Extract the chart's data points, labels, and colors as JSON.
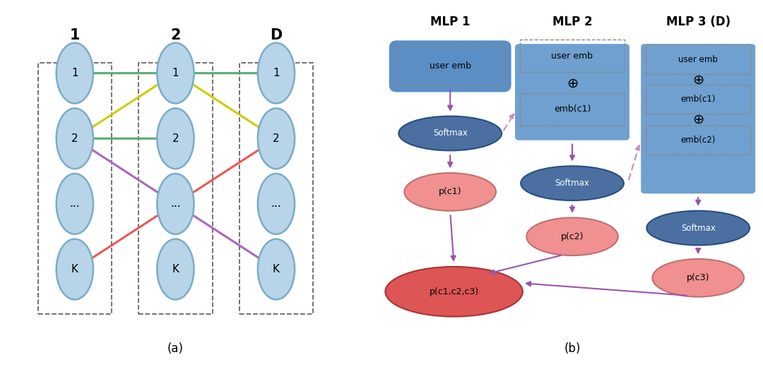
{
  "background": "#ffffff",
  "fig_width": 10.8,
  "fig_height": 5.3,
  "dpi": 100,
  "part_a": {
    "columns": [
      "1",
      "2",
      "D"
    ],
    "node_labels": [
      [
        "1",
        "2",
        "...",
        "K"
      ],
      [
        "1",
        "2",
        "...",
        "K"
      ],
      [
        "1",
        "2",
        "...",
        "K"
      ]
    ],
    "circle_color": "#b8d4e8",
    "circle_edge": "#7aacc8",
    "arrows": [
      {
        "fc": 0,
        "fr": 0,
        "tc": 1,
        "tr": 0,
        "color": "#5aaa70",
        "lw": 2.2
      },
      {
        "fc": 0,
        "fr": 1,
        "tc": 1,
        "tr": 0,
        "color": "#cccc00",
        "lw": 2.2
      },
      {
        "fc": 0,
        "fr": 1,
        "tc": 1,
        "tr": 1,
        "color": "#5aaa70",
        "lw": 2.2
      },
      {
        "fc": 0,
        "fr": 3,
        "tc": 1,
        "tr": 2,
        "color": "#ee5555",
        "lw": 2.2
      },
      {
        "fc": 0,
        "fr": 1,
        "tc": 1,
        "tr": 2,
        "color": "#aa66bb",
        "lw": 2.2
      },
      {
        "fc": 1,
        "fr": 0,
        "tc": 2,
        "tr": 0,
        "color": "#5aaa70",
        "lw": 2.2
      },
      {
        "fc": 1,
        "fr": 0,
        "tc": 2,
        "tr": 1,
        "color": "#cccc00",
        "lw": 2.2
      },
      {
        "fc": 1,
        "fr": 2,
        "tc": 2,
        "tr": 1,
        "color": "#ee5555",
        "lw": 2.2
      },
      {
        "fc": 1,
        "fr": 2,
        "tc": 2,
        "tr": 3,
        "color": "#aa66bb",
        "lw": 2.2
      }
    ]
  },
  "part_b": {
    "mlp_labels": [
      "MLP 1",
      "MLP 2",
      "MLP 3 (D)"
    ],
    "box_fill": "#5b8ec5",
    "box_fill2": "#6fa0d0",
    "softmax_fill": "#4a6fa0",
    "softmax_edge": "#2a4f80",
    "prob_fill_light": "#f09090",
    "prob_fill_dark": "#dd5555",
    "prob_edge_light": "#c07070",
    "prob_edge_dark": "#aa3333",
    "arrow_color": "#9955aa",
    "dashed_color": "#cc88bb"
  }
}
